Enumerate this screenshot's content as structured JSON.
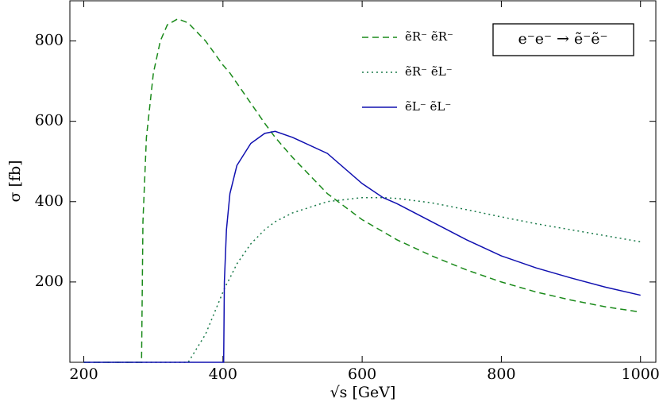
{
  "chart_data": {
    "type": "line",
    "annotation": "e⁻e⁻ → ẽ⁻ẽ⁻",
    "x_label": "√s [GeV]",
    "y_label": "σ [fb]",
    "x": [
      200,
      283,
      285,
      290,
      300,
      310,
      320,
      335,
      350,
      375,
      400,
      401,
      402,
      405,
      410,
      420,
      440,
      460,
      475,
      500,
      550,
      600,
      630,
      650,
      700,
      750,
      800,
      850,
      900,
      950,
      1000
    ],
    "series": [
      {
        "name": "ẽR⁻ ẽR⁻",
        "color": "#1a8a1a",
        "dash": "8,5",
        "values": [
          0,
          0,
          350,
          560,
          720,
          800,
          840,
          855,
          845,
          800,
          740,
          738,
          736,
          730,
          720,
          695,
          645,
          595,
          560,
          510,
          420,
          355,
          325,
          305,
          265,
          230,
          200,
          175,
          155,
          138,
          125
        ]
      },
      {
        "name": "ẽR⁻ ẽL⁻",
        "color": "#1a7a4a",
        "dash": "2,4",
        "values": [
          0,
          0,
          0,
          0,
          0,
          0,
          0,
          0,
          0,
          70,
          175,
          179,
          183,
          194,
          210,
          245,
          295,
          330,
          350,
          372,
          400,
          410,
          410,
          408,
          397,
          380,
          362,
          345,
          330,
          315,
          300
        ]
      },
      {
        "name": "ẽL⁻ ẽL⁻",
        "color": "#1010b0",
        "dash": "none",
        "values": [
          0,
          0,
          0,
          0,
          0,
          0,
          0,
          0,
          0,
          0,
          0,
          0,
          200,
          330,
          420,
          490,
          545,
          570,
          575,
          560,
          520,
          445,
          410,
          395,
          350,
          305,
          265,
          235,
          210,
          187,
          167
        ]
      }
    ],
    "xlim": [
      180,
      1022
    ],
    "ylim": [
      0,
      900
    ],
    "xticks": [
      200,
      400,
      600,
      800,
      1000
    ],
    "yticks": [
      200,
      400,
      600,
      800
    ]
  }
}
